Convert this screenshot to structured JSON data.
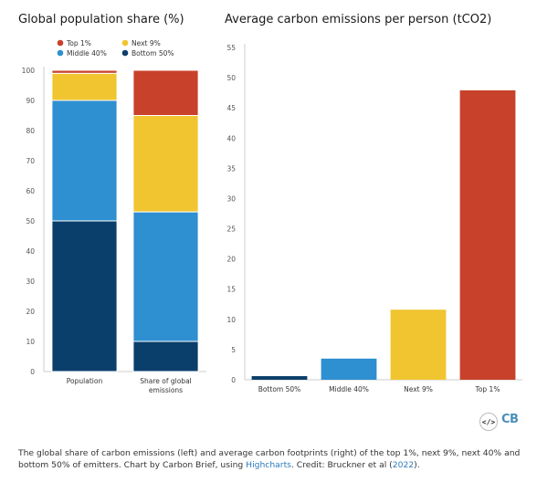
{
  "chart_data": [
    {
      "type": "bar",
      "stacked": true,
      "title": "Global population share (%)",
      "categories": [
        "Population",
        "Share of global emissions"
      ],
      "category_lines": [
        [
          "Population"
        ],
        [
          "Share of global",
          "emissions"
        ]
      ],
      "ylim": [
        0,
        100
      ],
      "yticks": [
        0,
        10,
        20,
        30,
        40,
        50,
        60,
        70,
        80,
        90,
        100
      ],
      "series": [
        {
          "name": "Bottom 50%",
          "color": "#0b3f6b",
          "values": [
            50,
            10
          ]
        },
        {
          "name": "Middle 40%",
          "color": "#2e8fd1",
          "values": [
            40,
            43
          ]
        },
        {
          "name": "Next 9%",
          "color": "#f0c530",
          "values": [
            9,
            32
          ]
        },
        {
          "name": "Top 1%",
          "color": "#c8412b",
          "values": [
            1,
            15
          ]
        }
      ],
      "legend": {
        "placement": "top",
        "order": [
          "Top 1%",
          "Next 9%",
          "Middle 40%",
          "Bottom 50%"
        ]
      },
      "grid": false
    },
    {
      "type": "bar",
      "title": "Average carbon emissions per person (tCO2)",
      "categories": [
        "Bottom 50%",
        "Middle 40%",
        "Next 9%",
        "Top 1%"
      ],
      "values": [
        0.6,
        3.5,
        11.6,
        47.9
      ],
      "colors": [
        "#0b3f6b",
        "#2e8fd1",
        "#f0c530",
        "#c8412b"
      ],
      "ylim": [
        0,
        55
      ],
      "yticks": [
        0,
        5,
        10,
        15,
        20,
        25,
        30,
        35,
        40,
        45,
        50,
        55
      ],
      "grid": false
    }
  ],
  "footer": {
    "text_before": "The global share of carbon emissions (left) and average carbon footprints (right) of the top 1%, next 9%, next 40% and bottom 50% of emitters. Chart by Carbon Brief, using ",
    "link1": "Highcharts",
    "text_middle": ". Credit: Bruckner et al (",
    "link2": "2022",
    "text_after": ")."
  },
  "branding": {
    "embed_icon": "</>",
    "logo": "CB"
  }
}
